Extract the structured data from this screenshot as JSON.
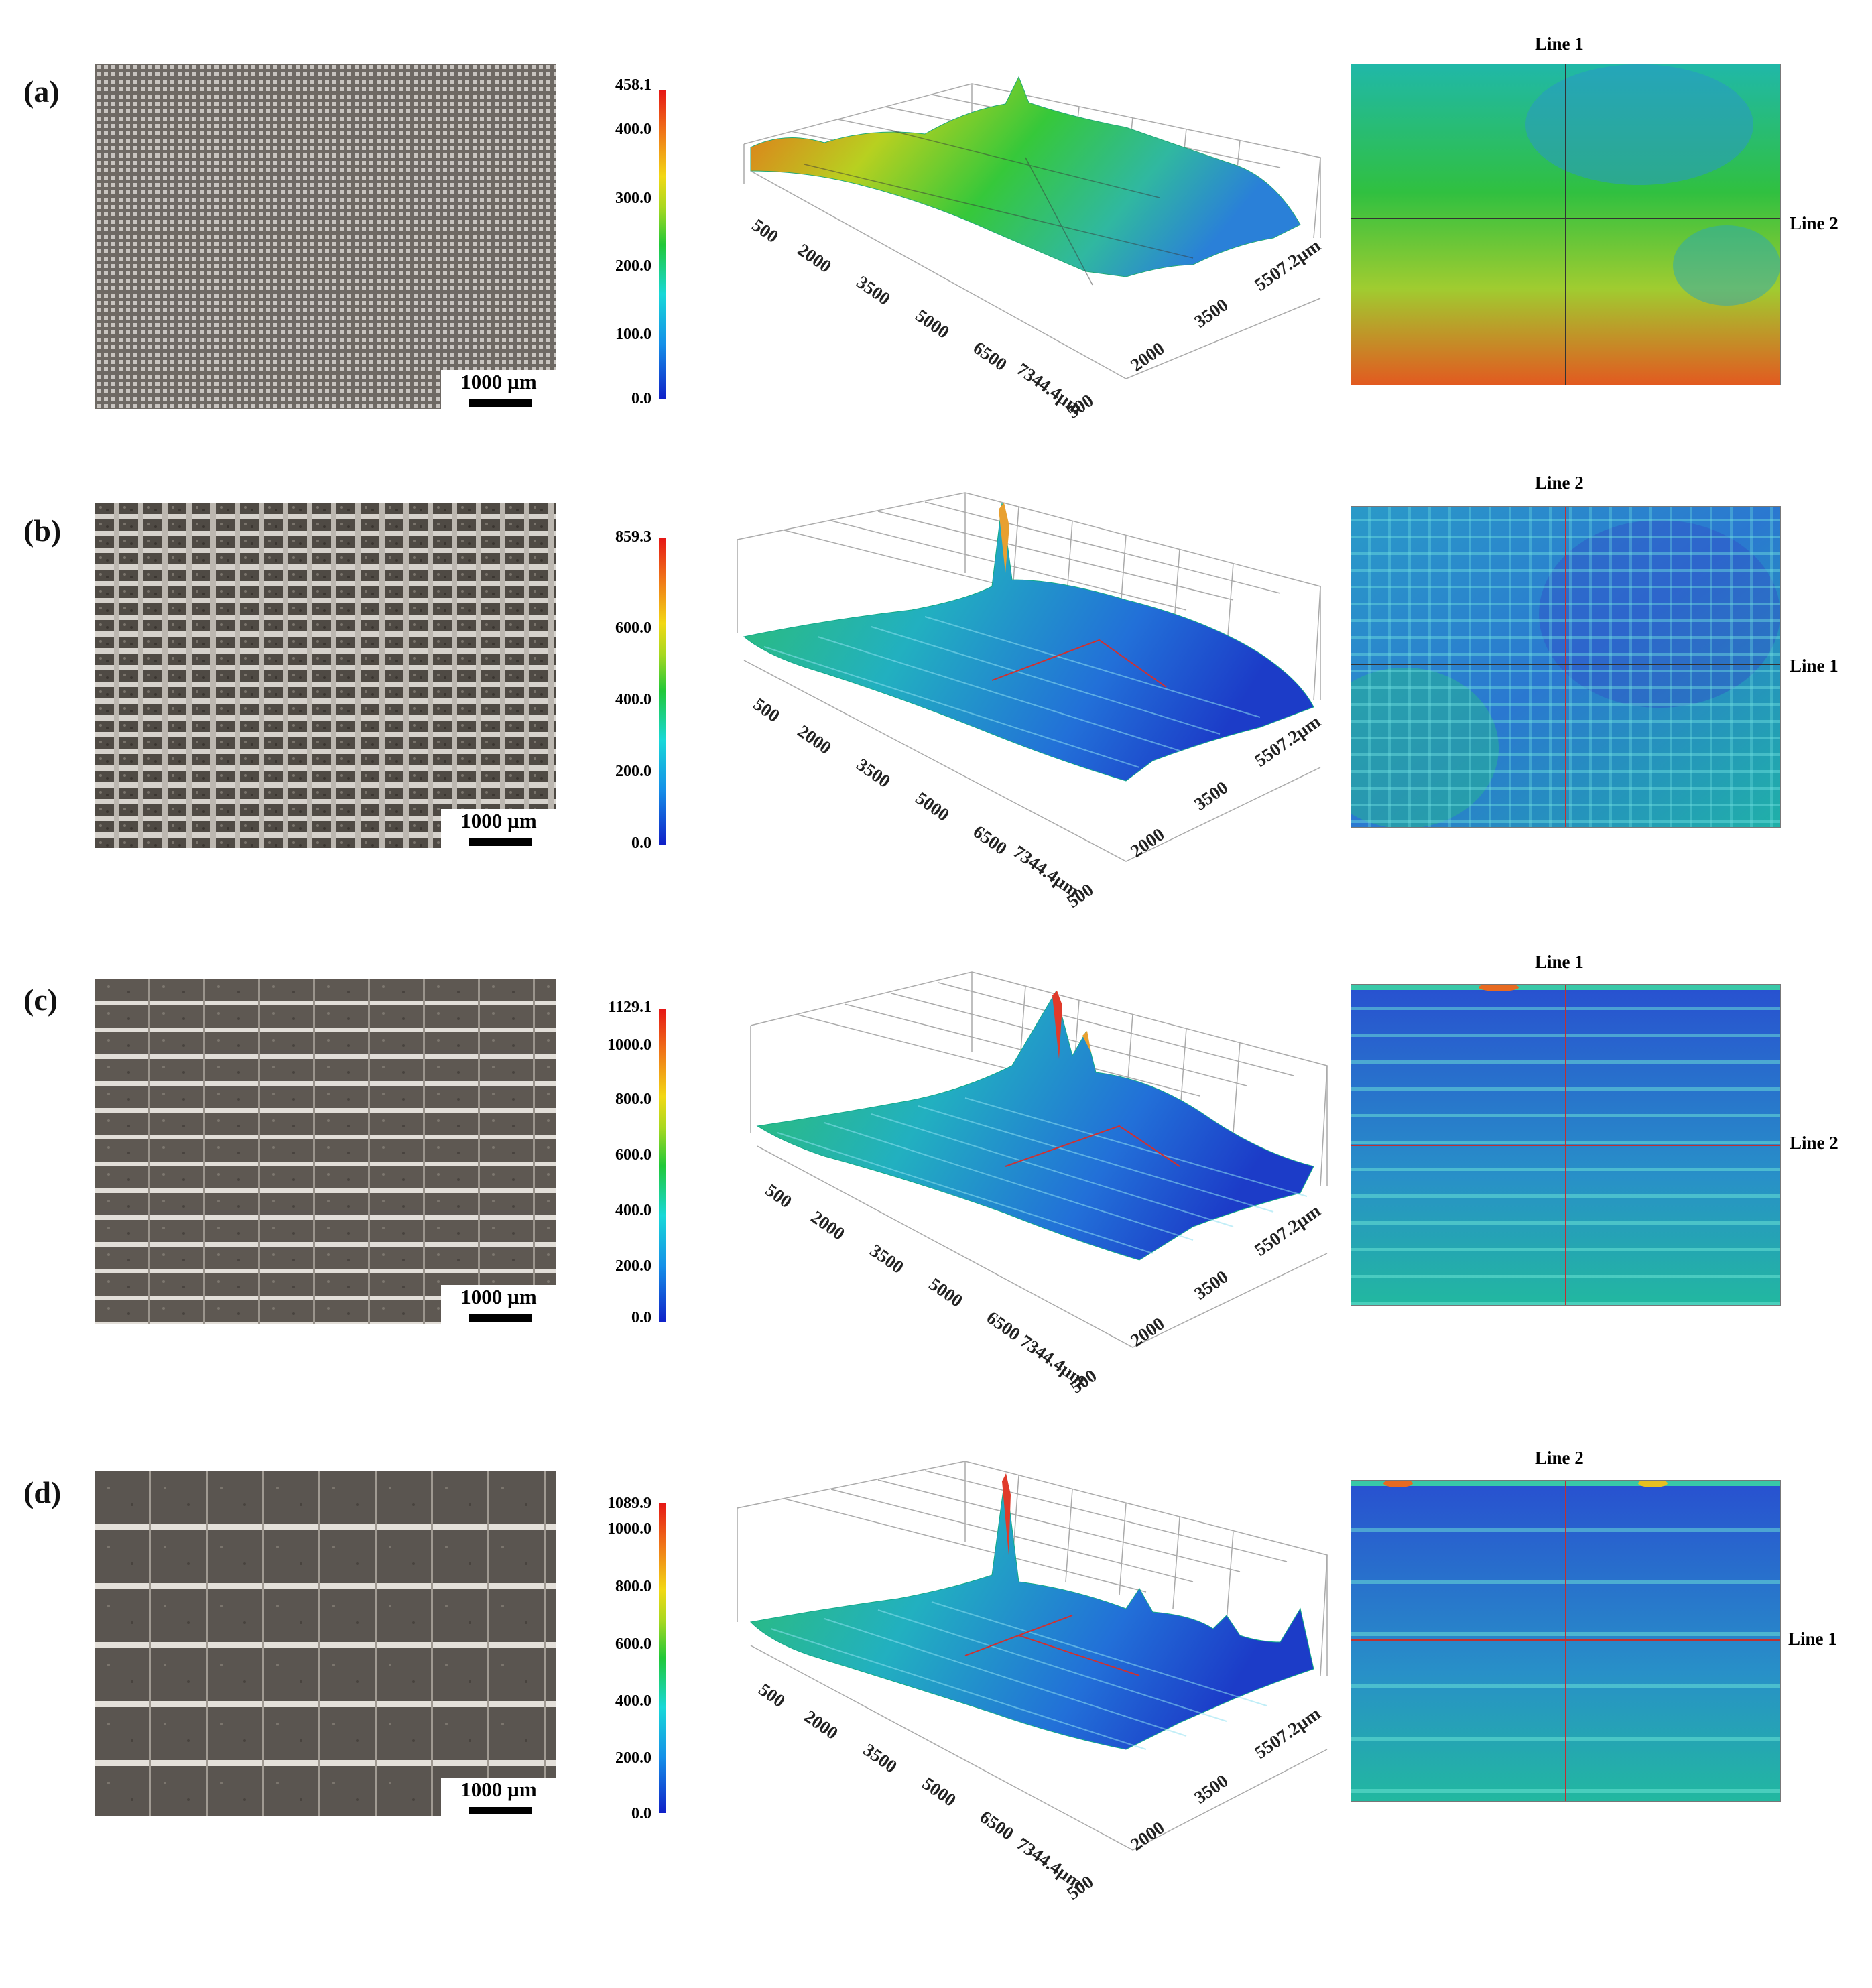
{
  "scale_bar_label": "1000 µm",
  "axis": {
    "x_ticks": [
      "500",
      "2000",
      "3500",
      "5000",
      "6500"
    ],
    "x_end": "7344.4µm",
    "y_ticks": [
      "500",
      "2000",
      "3500"
    ],
    "y_end": "5507.2µm"
  },
  "colors": {
    "low": "#1020c8",
    "mid": "#20c838",
    "high": "#e61616"
  },
  "panels": [
    {
      "label": "(a)",
      "colorbar": [
        "458.1",
        "400.0",
        "300.0",
        "200.0",
        "100.0",
        "0.0"
      ],
      "heatmap_top": "Line 1",
      "heatmap_side": "Line 2"
    },
    {
      "label": "(b)",
      "colorbar": [
        "859.3",
        "600.0",
        "400.0",
        "200.0",
        "0.0"
      ],
      "heatmap_top": "Line 2",
      "heatmap_side": "Line 1"
    },
    {
      "label": "(c)",
      "colorbar": [
        "1129.1",
        "1000.0",
        "800.0",
        "600.0",
        "400.0",
        "200.0",
        "0.0"
      ],
      "heatmap_top": "Line 1",
      "heatmap_side": "Line 2"
    },
    {
      "label": "(d)",
      "colorbar": [
        "1089.9",
        "1000.0",
        "800.0",
        "600.0",
        "400.0",
        "200.0",
        "0.0"
      ],
      "heatmap_top": "Line 2",
      "heatmap_side": "Line 1"
    }
  ]
}
